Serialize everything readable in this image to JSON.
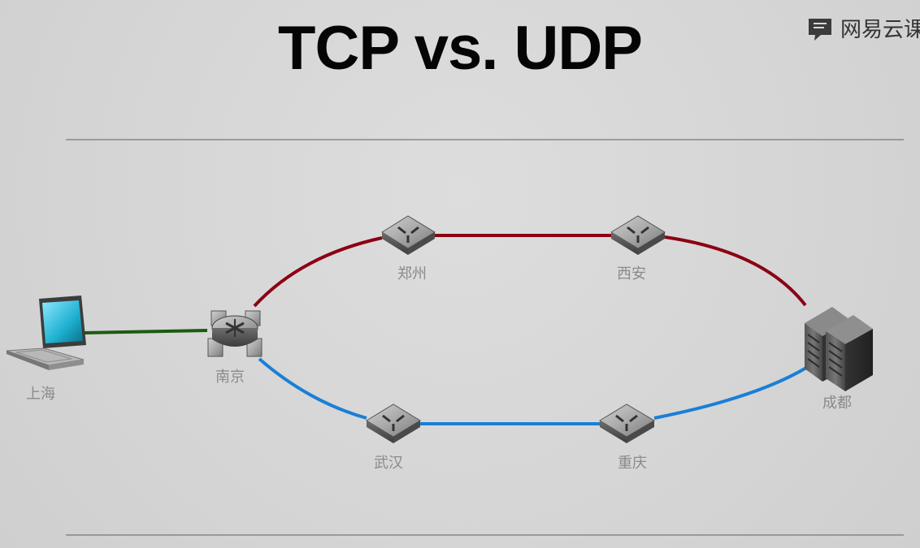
{
  "slide": {
    "title": "TCP vs. UDP",
    "brand": {
      "text": "网易云课",
      "icon": "brand-book-icon"
    }
  },
  "colors": {
    "tcp_path": "#8b0013",
    "udp_path": "#1a7fd6",
    "access_link": "#1e5a12",
    "label": "#8a8a8a"
  },
  "nodes": {
    "laptop": {
      "label": "上海",
      "icon": "laptop-icon"
    },
    "router": {
      "label": "南京",
      "icon": "router-icon"
    },
    "zhengzhou": {
      "label": "郑州",
      "icon": "switch-icon"
    },
    "xian": {
      "label": "西安",
      "icon": "switch-icon"
    },
    "wuhan": {
      "label": "武汉",
      "icon": "switch-icon"
    },
    "chongqing": {
      "label": "重庆",
      "icon": "switch-icon"
    },
    "server": {
      "label": "成都",
      "icon": "server-icon"
    }
  }
}
